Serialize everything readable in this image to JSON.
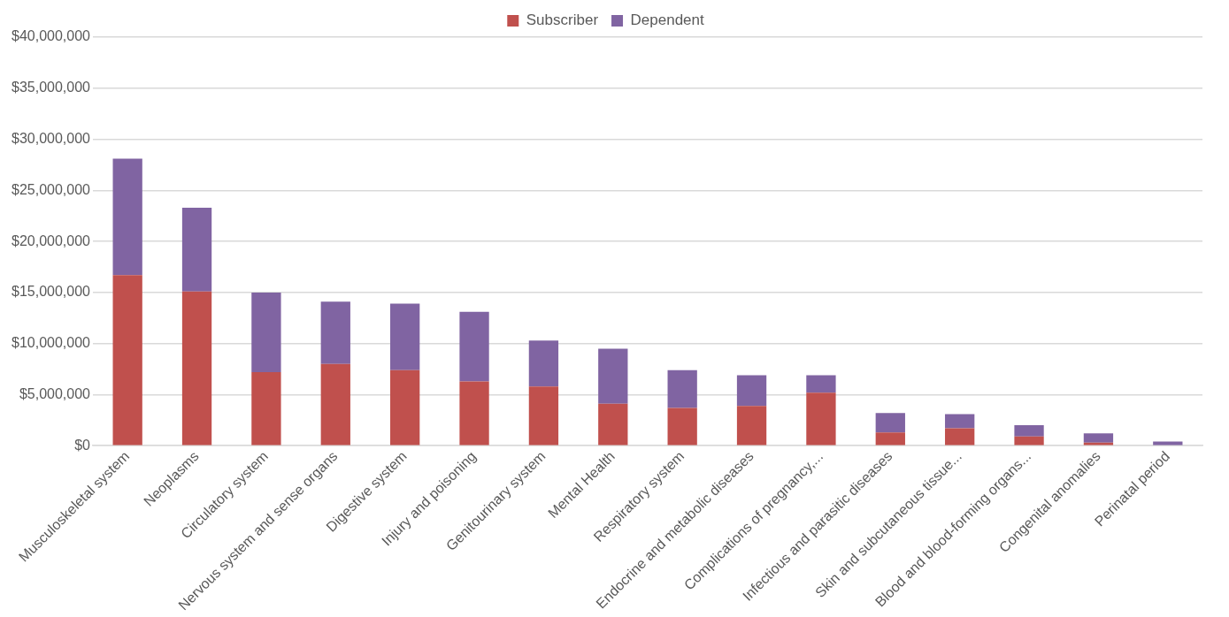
{
  "chart_data": {
    "type": "bar",
    "stacked": true,
    "legend": "top",
    "grid": "y",
    "categories": [
      "Musculoskeletal system",
      "Neoplasms",
      "Circulatory system",
      "Nervous system and sense organs",
      "Digestive system",
      "Injury and poisoning",
      "Genitourinary system",
      "Mental Health",
      "Respiratory system",
      "Endocrine and metabolic diseases",
      "Complications of pregnancy,...",
      "Infectious and parasitic diseases",
      "Skin and subcutaneous tissue...",
      "Blood and blood-forming organs...",
      "Congenital anomalies",
      "Perinatal period"
    ],
    "series": [
      {
        "name": "Subscriber",
        "color": "#c0504d",
        "values": [
          16700000,
          15100000,
          7200000,
          8000000,
          7400000,
          6300000,
          5800000,
          4100000,
          3700000,
          3900000,
          5200000,
          1300000,
          1700000,
          900000,
          300000,
          null
        ]
      },
      {
        "name": "Dependent",
        "color": "#8064a2",
        "values": [
          11400000,
          8200000,
          7800000,
          6100000,
          6500000,
          6800000,
          4500000,
          5400000,
          3700000,
          3000000,
          1700000,
          1900000,
          1400000,
          1100000,
          900000,
          400000
        ]
      }
    ],
    "ylim": [
      0,
      40000000
    ],
    "yticks": [
      {
        "value": 0,
        "label": "$0"
      },
      {
        "value": 5000000,
        "label": "$5,000,000"
      },
      {
        "value": 10000000,
        "label": "$10,000,000"
      },
      {
        "value": 15000000,
        "label": "$15,000,000"
      },
      {
        "value": 20000000,
        "label": "$20,000,000"
      },
      {
        "value": 25000000,
        "label": "$25,000,000"
      },
      {
        "value": 30000000,
        "label": "$30,000,000"
      },
      {
        "value": 35000000,
        "label": "$35,000,000"
      },
      {
        "value": 40000000,
        "label": "$40,000,000"
      }
    ]
  }
}
